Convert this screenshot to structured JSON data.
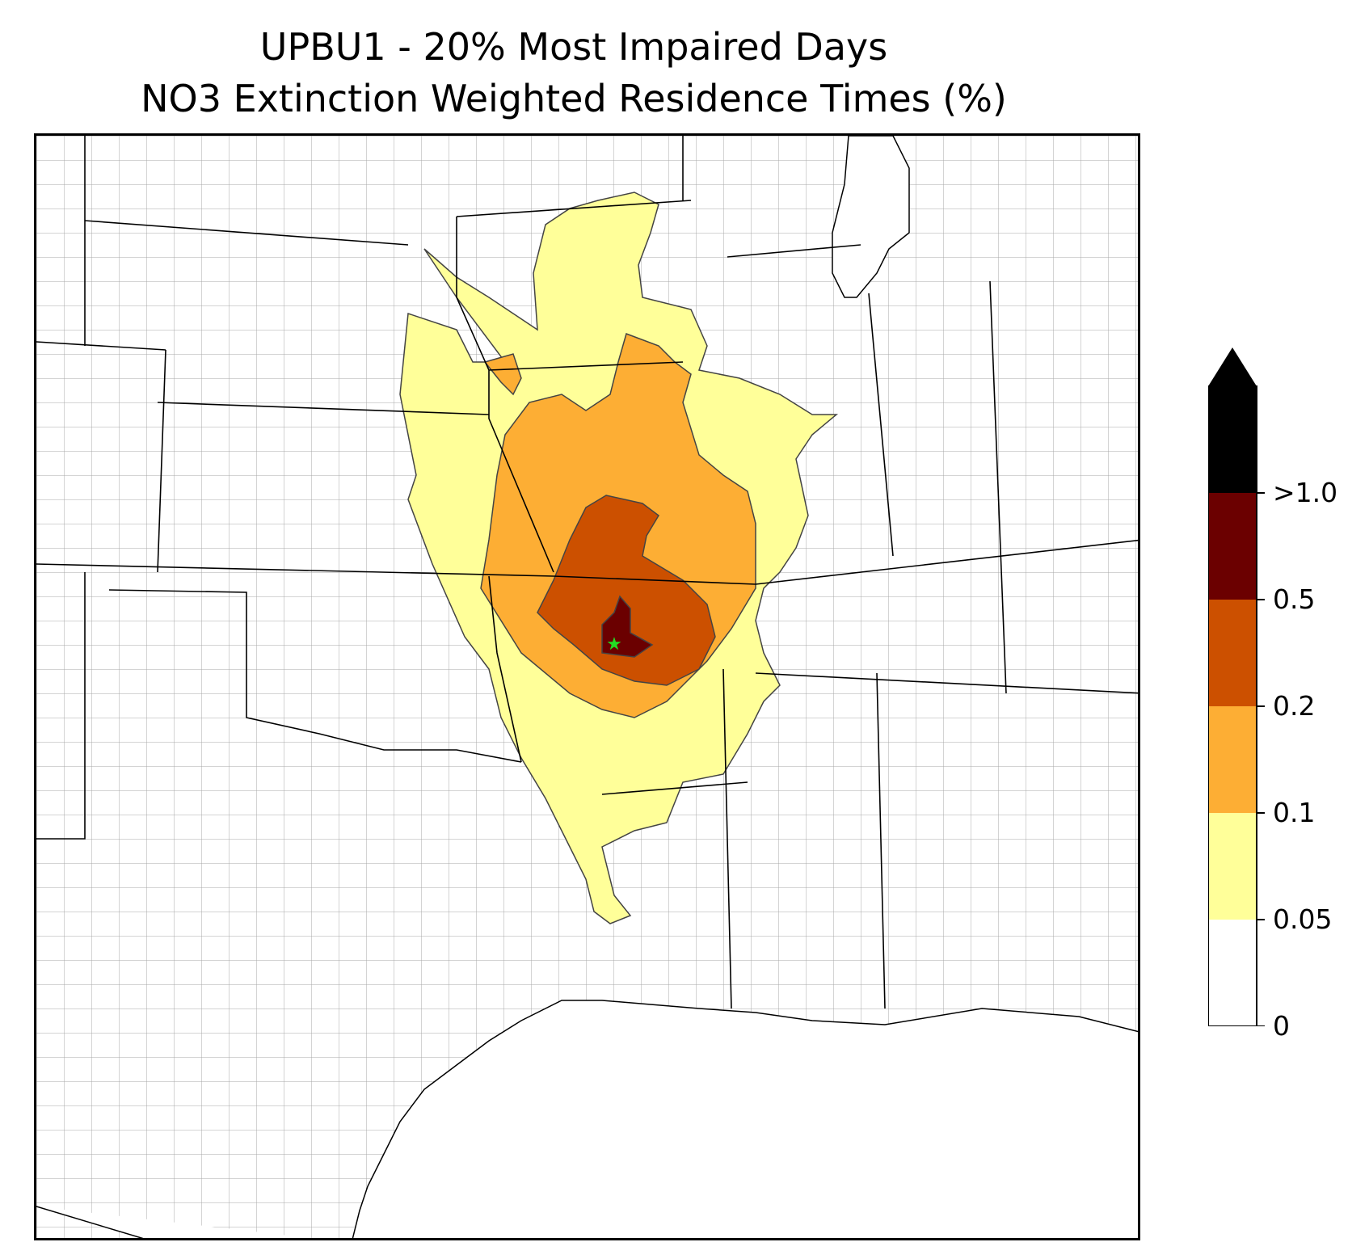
{
  "title": {
    "line1": "UPBU1 - 20% Most Impaired Days",
    "line2": "NO3 Extinction Weighted Residence Times (%)"
  },
  "map": {
    "site_marker": {
      "name": "UPBU1",
      "symbol": "star",
      "color": "#22dd22"
    },
    "boundary_colors": {
      "state": "#000000",
      "county": "#9a9a9a"
    }
  },
  "colorbar": {
    "extend": "max",
    "ticks": [
      "0",
      "0.05",
      "0.1",
      "0.2",
      "0.5",
      ">1.0"
    ],
    "levels": [
      {
        "range": "0 – 0.05",
        "color": "#ffffff"
      },
      {
        "range": "0.05 – 0.1",
        "color": "#ffff99"
      },
      {
        "range": "0.1 – 0.2",
        "color": "#fdae34"
      },
      {
        "range": "0.2 – 0.5",
        "color": "#cc5000"
      },
      {
        "range": "0.5 – 1.0",
        "color": "#6b0000"
      },
      {
        "range": ">1.0",
        "color": "#000000"
      }
    ]
  }
}
